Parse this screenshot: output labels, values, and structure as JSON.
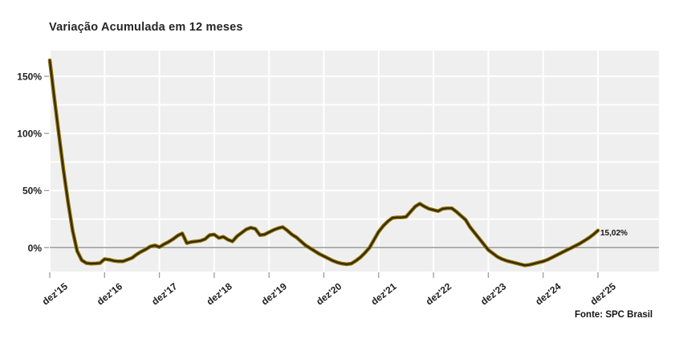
{
  "title": "Variação Acumulada em 12 meses",
  "source": "Fonte: SPC Brasil",
  "colors": {
    "line_outer": "#8f7300",
    "line_inner": "#332800",
    "plot_bg": "#efefef",
    "grid": "#ffffff",
    "zero_line": "#9c9c9c",
    "tick": "#9c9c9c",
    "axis_text": "#1f1f1f",
    "title_text": "#262626",
    "page_bg": "#ffffff"
  },
  "chart_data": {
    "type": "line",
    "title": "Variação Acumulada em 12 meses",
    "xlabel": "",
    "ylabel": "",
    "x_axis": {
      "interval": "yearly ticks, monthly data",
      "ticks": [
        "dez'15",
        "dez'16",
        "dez'17",
        "dez'18",
        "dez'19",
        "dez'20",
        "dez'21",
        "dez'22",
        "dez'23",
        "dez'24",
        "dez'25"
      ]
    },
    "y_axis": {
      "tick_labels": [
        "0%",
        "50%",
        "100%",
        "150%"
      ],
      "tick_values": [
        0,
        50,
        100,
        150
      ],
      "minor_grid_step_pct": 25,
      "range_pct": [
        -21,
        172
      ],
      "grid": "white major+minor on light gray"
    },
    "series": [
      {
        "name": "Variação Acumulada em 12 meses",
        "unit": "%",
        "start_month": "dez'15",
        "end_month": "dez'25",
        "interval": "monthly",
        "values": [
          164,
          131,
          99,
          68,
          40,
          15,
          -3,
          -11,
          -13.5,
          -14,
          -13.8,
          -13.5,
          -10,
          -10.5,
          -11.5,
          -12,
          -12,
          -10.5,
          -9,
          -6,
          -3.5,
          -1.5,
          1,
          2,
          0.5,
          3,
          5,
          7.5,
          10.5,
          12.5,
          4,
          5,
          5.5,
          6,
          7.5,
          11,
          11.5,
          8.5,
          9.5,
          7,
          5.5,
          10,
          13,
          16,
          17.5,
          16.5,
          11,
          11.5,
          13.5,
          15.5,
          17,
          18,
          15,
          11.5,
          9,
          5.5,
          2,
          -0.5,
          -3,
          -5.5,
          -7.5,
          -9.5,
          -11.5,
          -13,
          -14,
          -14.5,
          -14,
          -11.5,
          -8.5,
          -4.5,
          0,
          7,
          14,
          19,
          23,
          26,
          26.5,
          26.5,
          27,
          31.5,
          36,
          38.5,
          36,
          34,
          33,
          32,
          34,
          34.5,
          34.5,
          31.5,
          28,
          24.5,
          18,
          13,
          8,
          3,
          -2,
          -5,
          -8,
          -10,
          -11.5,
          -12.5,
          -13.5,
          -14.5,
          -15.5,
          -15,
          -14,
          -13,
          -12,
          -10.5,
          -8.5,
          -6.5,
          -4.5,
          -2.5,
          -0.5,
          1.5,
          3.5,
          6,
          8.5,
          11.5,
          15.02
        ]
      }
    ],
    "last_point_label": "15,02%",
    "last_value_pct": 15.02,
    "legend": "none"
  }
}
